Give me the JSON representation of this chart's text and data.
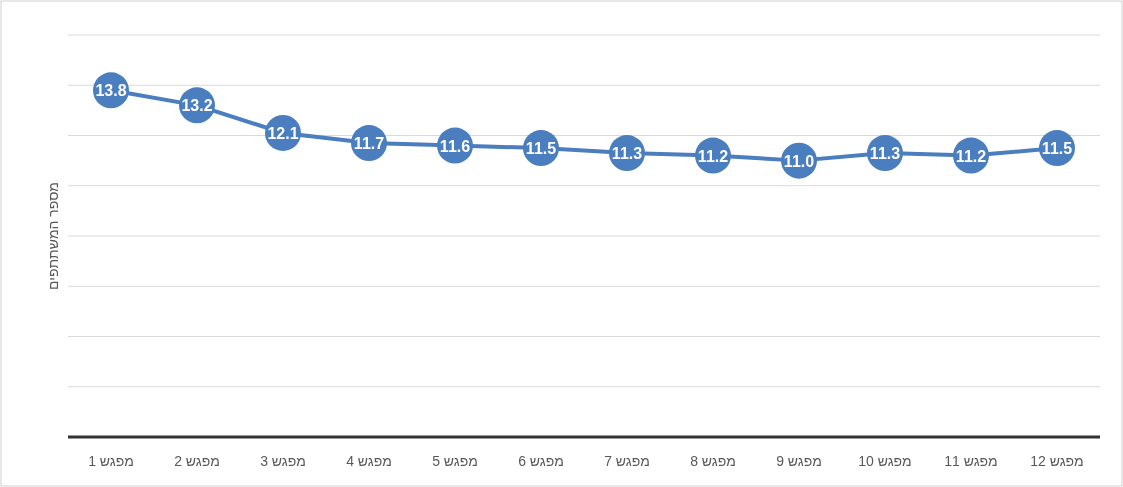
{
  "chart_data": {
    "type": "line",
    "ylabel": "מספר המשתתפים",
    "categories": [
      "מפגש 1",
      "מפגש 2",
      "מפגש 3",
      "מפגש 4",
      "מפגש 5",
      "מפגש 6",
      "מפגש 7",
      "מפגש 8",
      "מפגש 9",
      "מפגש 10",
      "מפגש 11",
      "מפגש 12"
    ],
    "values": [
      13.8,
      13.2,
      12.1,
      11.7,
      11.6,
      11.5,
      11.3,
      11.2,
      11.0,
      11.3,
      11.2,
      11.5
    ],
    "color": "#4a7ebf",
    "ylim": [
      0,
      16
    ],
    "yticks": [
      {
        "value": 0,
        "label": null
      },
      {
        "value": 2,
        "label": null
      },
      {
        "value": 4,
        "label": null
      },
      {
        "value": 6,
        "label": null
      },
      {
        "value": 8,
        "label": null
      },
      {
        "value": 10,
        "label": null
      },
      {
        "value": 12,
        "label": null
      },
      {
        "value": 14,
        "label": null
      },
      {
        "value": 16,
        "label": null
      }
    ],
    "tick_labels": "x",
    "grid": "y",
    "marker": "circle",
    "value_labels": [
      "13.8",
      "13.2",
      "12.1",
      "11.7",
      "11.6",
      "11.5",
      "11.3",
      "11.2",
      "11.0",
      "11.3",
      "11.2",
      "11.5"
    ]
  }
}
